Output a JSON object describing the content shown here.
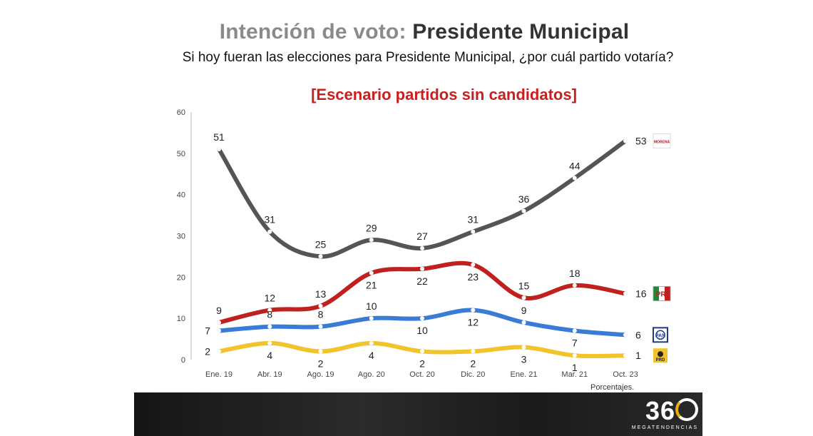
{
  "header": {
    "title_prefix": "Intención de voto:",
    "title_main": "Presidente Municipal",
    "subtitle": "Si hoy fueran las elecciones para Presidente Municipal, ¿por cuál partido votaría?",
    "scenario": "[Escenario partidos sin candidatos]"
  },
  "footnote": "Porcentajes.",
  "logo": {
    "mark": "360",
    "sub": "MEGATENDENCIAS"
  },
  "chart_data": {
    "type": "line",
    "categories": [
      "Ene. 19",
      "Abr. 19",
      "Ago. 19",
      "Ago. 20",
      "Oct. 20",
      "Dic. 20",
      "Ene. 21",
      "Mar. 21",
      "Oct. 23"
    ],
    "ylim": [
      0,
      60
    ],
    "yticks": [
      0,
      10,
      20,
      30,
      40,
      50,
      60
    ],
    "grid": false,
    "legend": "party logos at right end of each line",
    "series": [
      {
        "name": "MORENA",
        "color": "#555555",
        "values": [
          51,
          31,
          25,
          29,
          27,
          31,
          36,
          44,
          53
        ],
        "labels": [
          "above",
          "above",
          "above",
          "above",
          "above",
          "above",
          "above",
          "above",
          "right"
        ]
      },
      {
        "name": "PRI",
        "color": "#c0211f",
        "values": [
          9,
          12,
          13,
          21,
          22,
          23,
          15,
          18,
          16
        ],
        "labels": [
          "above",
          "above",
          "above",
          "below",
          "below",
          "below",
          "above",
          "above",
          "right"
        ]
      },
      {
        "name": "PAN",
        "color": "#3a7bd5",
        "values": [
          7,
          8,
          8,
          10,
          10,
          12,
          9,
          7,
          6
        ],
        "labels": [
          "left",
          "above",
          "above",
          "above",
          "below",
          "below",
          "above",
          "below",
          "right"
        ]
      },
      {
        "name": "PRD",
        "color": "#f2c42b",
        "values": [
          2,
          4,
          2,
          4,
          2,
          2,
          3,
          1,
          1
        ],
        "labels": [
          "left",
          "below",
          "below",
          "below",
          "below",
          "below",
          "below",
          "below",
          "right"
        ]
      }
    ],
    "icons": [
      "morena-logo",
      "pri-logo",
      "pan-logo",
      "prd-logo"
    ]
  }
}
